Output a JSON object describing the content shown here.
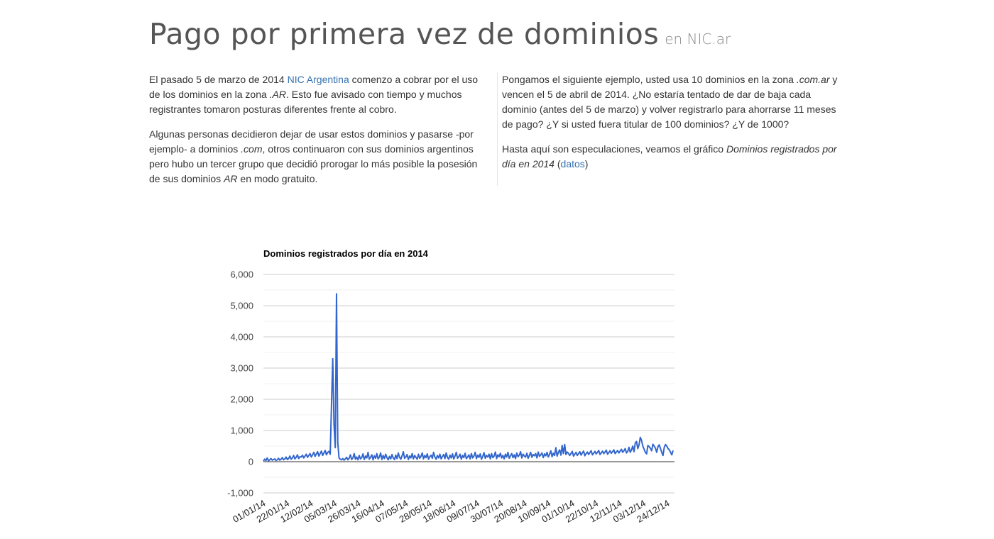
{
  "header": {
    "title": "Pago por primera vez de dominios",
    "subtitle": "en NIC.ar"
  },
  "left_column": {
    "p1": {
      "t1": "El pasado 5 de marzo de 2014 ",
      "link": "NIC Argentina",
      "t2": " comenzo a cobrar por el uso de los dominios en la zona ",
      "em": ".AR",
      "t3": ". Esto fue avisado con tiempo y muchos registrantes tomaron posturas diferentes frente al cobro."
    },
    "p2": {
      "t1": "Algunas personas decidieron dejar de usar estos dominios y pasarse -por ejemplo- a dominios ",
      "em1": ".com",
      "t2": ", otros continuaron con sus dominios argentinos pero hubo un tercer grupo que decidió prorogar lo más posible la posesión de sus dominios ",
      "em2": "AR",
      "t3": " en modo gratuito."
    }
  },
  "right_column": {
    "p1": {
      "t1": "Pongamos el siguiente ejemplo, usted usa 10 dominios en la zona ",
      "em": ".com.ar",
      "t2": " y vencen el 5 de abril de 2014. ¿No estaría tentado de dar de baja cada dominio (antes del 5 de marzo) y volver registrarlo para ahorrarse 11 meses de pago? ¿Y si usted fuera titular de 100 dominios? ¿Y de 1000?"
    },
    "p2": {
      "t1": "Hasta aquí son especulaciones, veamos el gráfico ",
      "em": "Dominios registrados por día en 2014",
      "t2": " (",
      "link": "datos",
      "t3": ")"
    }
  },
  "chart_data": {
    "type": "line",
    "title": "Dominios registrados por día en 2014",
    "xlabel": "",
    "ylabel": "",
    "ylim": [
      -1000,
      6000
    ],
    "y_ticks": [
      6000,
      5000,
      4000,
      3000,
      2000,
      1000,
      0,
      -1000
    ],
    "y_tick_labels": [
      "6,000",
      "5,000",
      "4,000",
      "3,000",
      "2,000",
      "1,000",
      "0",
      "-1,000"
    ],
    "x_tick_labels": [
      "01/01/14",
      "22/01/14",
      "12/02/14",
      "05/03/14",
      "26/03/14",
      "16/04/14",
      "07/05/14",
      "28/05/14",
      "18/06/14",
      "09/07/14",
      "30/07/14",
      "20/08/14",
      "10/09/14",
      "01/10/14",
      "22/10/14",
      "12/11/14",
      "03/12/14",
      "24/12/14"
    ],
    "grid": true,
    "legend": "none",
    "series_color": "#3366cc",
    "series": [
      {
        "values": [
          20,
          80,
          40,
          120,
          30,
          60,
          100,
          50,
          70,
          90,
          40,
          60,
          110,
          50,
          80,
          130,
          60,
          90,
          150,
          70,
          100,
          180,
          80,
          120,
          200,
          90,
          140,
          220,
          100,
          160,
          150,
          210,
          120,
          180,
          240,
          140,
          200,
          260,
          150,
          220,
          300,
          170,
          250,
          320,
          180,
          260,
          340,
          200,
          280,
          360,
          220,
          300,
          330,
          240,
          1800,
          3300,
          1200,
          450,
          5380,
          600,
          120,
          80,
          60,
          100,
          50,
          90,
          140,
          60,
          110,
          220,
          70,
          120,
          260,
          80,
          150,
          60,
          200,
          90,
          130,
          250,
          70,
          180,
          120,
          300,
          80,
          140,
          220,
          60,
          190,
          110,
          260,
          90,
          150,
          280,
          70,
          200,
          100,
          240,
          130,
          60,
          170,
          90,
          230,
          120,
          70,
          210,
          100,
          280,
          140,
          80,
          190,
          320,
          110,
          150,
          230,
          70,
          180,
          120,
          260,
          90,
          200,
          140,
          80,
          240,
          110,
          170,
          280,
          90,
          200,
          130,
          250,
          80,
          160,
          210,
          110,
          300,
          150,
          80,
          200,
          120,
          240,
          90,
          170,
          230,
          100,
          280,
          140,
          80,
          210,
          120,
          250,
          90,
          180,
          300,
          110,
          160,
          240,
          80,
          200,
          130,
          270,
          100,
          150,
          220,
          90,
          260,
          120,
          180,
          300,
          100,
          210,
          140,
          250,
          80,
          170,
          290,
          110,
          200,
          150,
          240,
          90,
          260,
          130,
          180,
          310,
          100,
          220,
          160,
          270,
          120,
          200,
          90,
          240,
          150,
          300,
          110,
          190,
          260,
          130,
          220,
          100,
          280,
          160,
          210,
          320,
          120,
          240,
          180,
          150,
          270,
          110,
          200,
          300,
          140,
          230,
          190,
          260,
          120,
          310,
          170,
          220,
          280,
          130,
          250,
          190,
          300,
          150,
          240,
          350,
          160,
          270,
          200,
          450,
          180,
          300,
          380,
          210,
          520,
          260,
          550,
          230,
          310,
          270,
          200,
          260,
          330,
          180,
          240,
          300,
          200,
          260,
          320,
          210,
          280,
          340,
          190,
          260,
          310,
          230,
          290,
          350,
          220,
          270,
          330,
          250,
          300,
          360,
          230,
          280,
          340,
          260,
          310,
          370,
          240,
          290,
          350,
          270,
          320,
          380,
          260,
          310,
          360,
          280,
          340,
          400,
          300,
          350,
          420,
          280,
          330,
          460,
          300,
          380,
          500,
          320,
          600,
          650,
          420,
          540,
          780,
          680,
          500,
          400,
          300,
          250,
          520,
          480,
          430,
          350,
          560,
          500,
          430,
          300,
          480,
          540,
          420,
          300,
          200,
          460,
          550,
          500,
          420,
          380,
          300,
          220,
          360
        ]
      }
    ]
  }
}
